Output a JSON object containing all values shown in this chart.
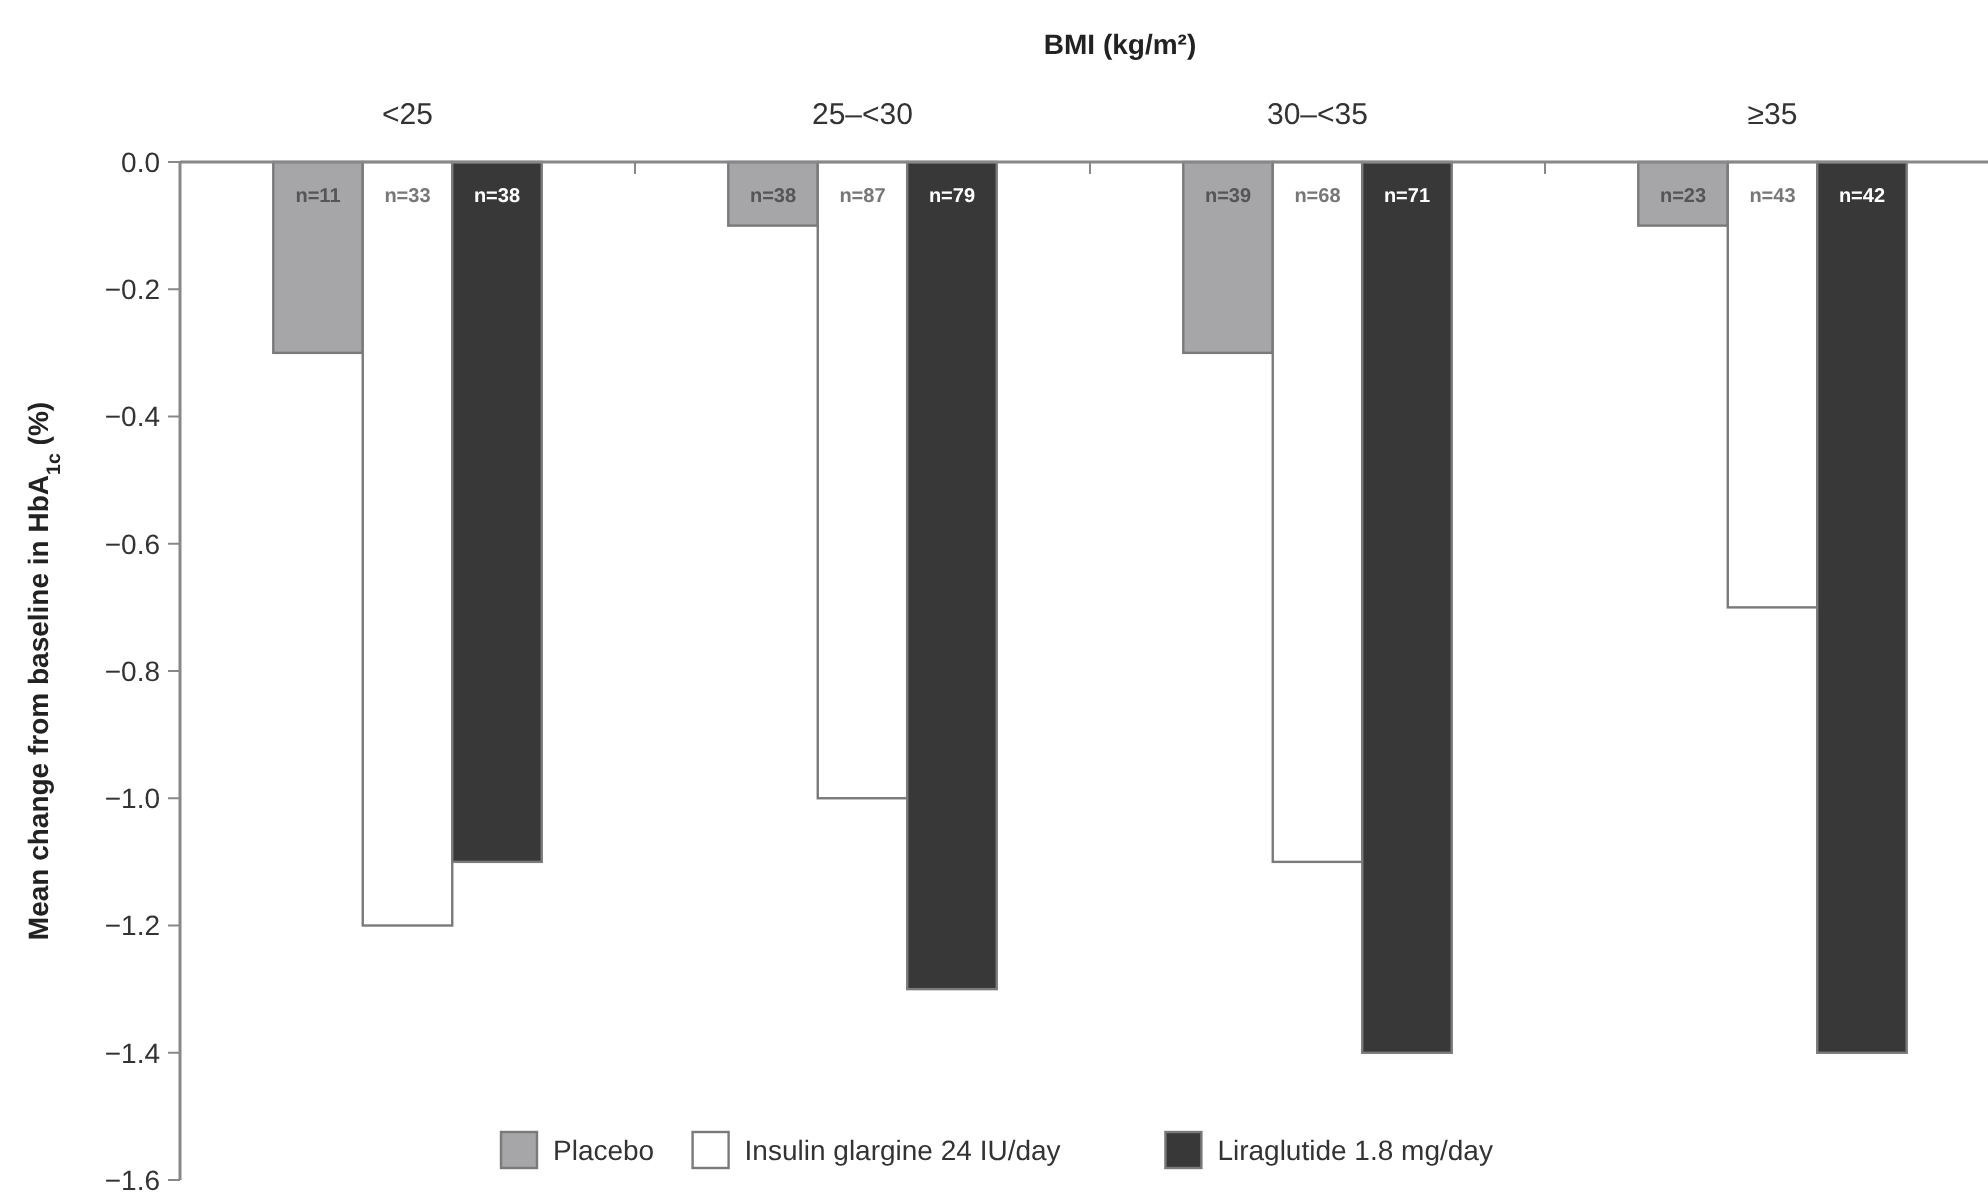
{
  "chart_data": {
    "type": "bar",
    "xlabel": "BMI (kg/m²)",
    "ylabel": "Mean change from baseline in HbA$_{1c}$ (%)",
    "categories": [
      "<25",
      "25–<30",
      "30–<35",
      "≥35"
    ],
    "series": [
      {
        "name": "Placebo",
        "color": "#a6a6a8",
        "values": [
          -0.3,
          -0.1,
          -0.3,
          -0.1
        ]
      },
      {
        "name": "Insulin glargine 24 IU/day",
        "color": "#ffffff",
        "values": [
          -1.2,
          -1.0,
          -1.1,
          -0.7
        ]
      },
      {
        "name": "Liraglutide 1.8 mg/day",
        "color": "#383838",
        "values": [
          -1.1,
          -1.3,
          -1.4,
          -1.4
        ]
      }
    ],
    "annotations": [
      "n=11",
      "n=38",
      "n=39",
      "n=23",
      "n=33",
      "n=87",
      "n=68",
      "n=43",
      "n=38",
      "n=79",
      "n=71",
      "n=42"
    ],
    "ylim": [
      -1.6,
      0
    ],
    "yticks": [
      {
        "value": 0,
        "label": "0.0"
      },
      {
        "value": -0.2,
        "label": "−0.2"
      },
      {
        "value": -0.4,
        "label": "−0.4"
      },
      {
        "value": -0.6,
        "label": "−0.6"
      },
      {
        "value": -0.8,
        "label": "−0.8"
      },
      {
        "value": -1.0,
        "label": "−1.0"
      },
      {
        "value": -1.2,
        "label": "−1.2"
      },
      {
        "value": -1.4,
        "label": "−1.4"
      },
      {
        "value": -1.6,
        "label": "−1.6"
      }
    ],
    "grid": false,
    "legend": "bottom"
  }
}
